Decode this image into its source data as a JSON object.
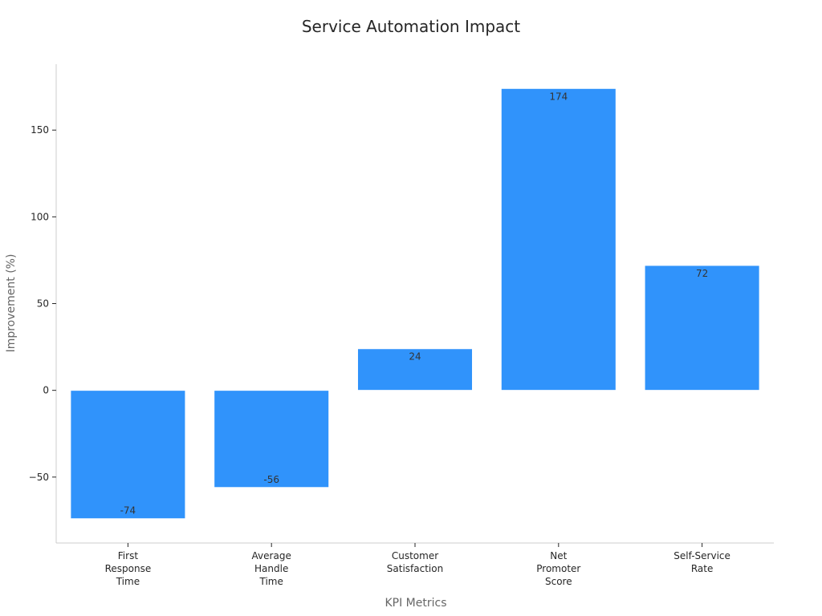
{
  "chart_data": {
    "type": "bar",
    "title": "Service Automation Impact",
    "xlabel": "KPI Metrics",
    "ylabel": "Improvement (%)",
    "categories": [
      [
        "First",
        "Response",
        "Time"
      ],
      [
        "Average",
        "Handle",
        "Time"
      ],
      [
        "Customer",
        "Satisfaction"
      ],
      [
        "Net",
        "Promoter",
        "Score"
      ],
      [
        "Self-Service",
        "Rate"
      ]
    ],
    "values": [
      -74,
      -56,
      24,
      174,
      72
    ],
    "ylim": [
      -88,
      188
    ],
    "yticks": [
      -50,
      0,
      50,
      100,
      150
    ],
    "ytick_labels": [
      "−50",
      "0",
      "50",
      "100",
      "150"
    ],
    "bar_color": "#3093fb",
    "axis_color": "#cccccc",
    "grid": false,
    "legend": "none"
  }
}
